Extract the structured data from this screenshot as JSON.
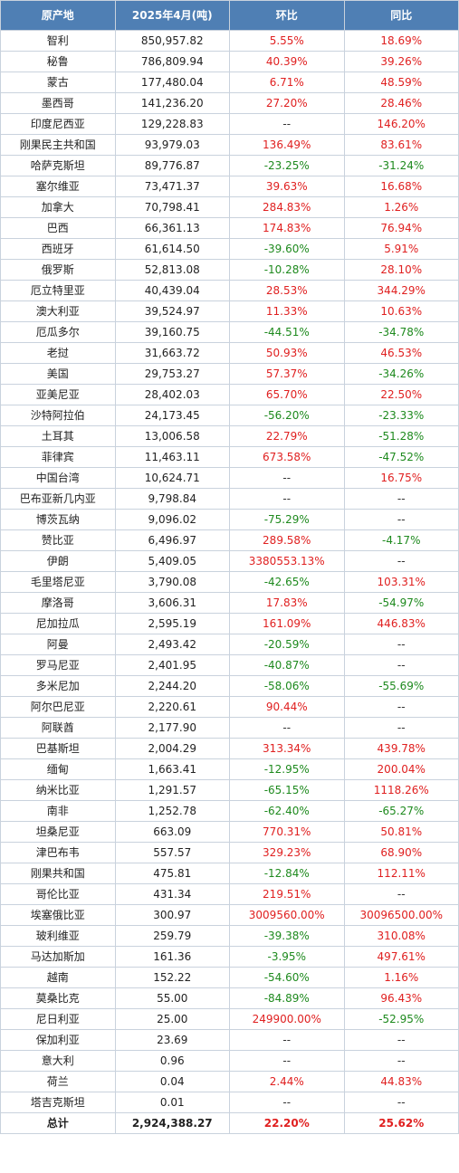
{
  "table": {
    "headers": [
      "原产地",
      "2025年4月(吨)",
      "环比",
      "同比"
    ],
    "rows": [
      [
        "智利",
        "850,957.82",
        "5.55%",
        "18.69%"
      ],
      [
        "秘鲁",
        "786,809.94",
        "40.39%",
        "39.26%"
      ],
      [
        "蒙古",
        "177,480.04",
        "6.71%",
        "48.59%"
      ],
      [
        "墨西哥",
        "141,236.20",
        "27.20%",
        "28.46%"
      ],
      [
        "印度尼西亚",
        "129,228.83",
        "--",
        "146.20%"
      ],
      [
        "刚果民主共和国",
        "93,979.03",
        "136.49%",
        "83.61%"
      ],
      [
        "哈萨克斯坦",
        "89,776.87",
        "-23.25%",
        "-31.24%"
      ],
      [
        "塞尔维亚",
        "73,471.37",
        "39.63%",
        "16.68%"
      ],
      [
        "加拿大",
        "70,798.41",
        "284.83%",
        "1.26%"
      ],
      [
        "巴西",
        "66,361.13",
        "174.83%",
        "76.94%"
      ],
      [
        "西班牙",
        "61,614.50",
        "-39.60%",
        "5.91%"
      ],
      [
        "俄罗斯",
        "52,813.08",
        "-10.28%",
        "28.10%"
      ],
      [
        "厄立特里亚",
        "40,439.04",
        "28.53%",
        "344.29%"
      ],
      [
        "澳大利亚",
        "39,524.97",
        "11.33%",
        "10.63%"
      ],
      [
        "厄瓜多尔",
        "39,160.75",
        "-44.51%",
        "-34.78%"
      ],
      [
        "老挝",
        "31,663.72",
        "50.93%",
        "46.53%"
      ],
      [
        "美国",
        "29,753.27",
        "57.37%",
        "-34.26%"
      ],
      [
        "亚美尼亚",
        "28,402.03",
        "65.70%",
        "22.50%"
      ],
      [
        "沙特阿拉伯",
        "24,173.45",
        "-56.20%",
        "-23.33%"
      ],
      [
        "土耳其",
        "13,006.58",
        "22.79%",
        "-51.28%"
      ],
      [
        "菲律宾",
        "11,463.11",
        "673.58%",
        "-47.52%"
      ],
      [
        "中国台湾",
        "10,624.71",
        "--",
        "16.75%"
      ],
      [
        "巴布亚新几内亚",
        "9,798.84",
        "--",
        "--"
      ],
      [
        "博茨瓦纳",
        "9,096.02",
        "-75.29%",
        "--"
      ],
      [
        "赞比亚",
        "6,496.97",
        "289.58%",
        "-4.17%"
      ],
      [
        "伊朗",
        "5,409.05",
        "3380553.13%",
        "--"
      ],
      [
        "毛里塔尼亚",
        "3,790.08",
        "-42.65%",
        "103.31%"
      ],
      [
        "摩洛哥",
        "3,606.31",
        "17.83%",
        "-54.97%"
      ],
      [
        "尼加拉瓜",
        "2,595.19",
        "161.09%",
        "446.83%"
      ],
      [
        "阿曼",
        "2,493.42",
        "-20.59%",
        "--"
      ],
      [
        "罗马尼亚",
        "2,401.95",
        "-40.87%",
        "--"
      ],
      [
        "多米尼加",
        "2,244.20",
        "-58.06%",
        "-55.69%"
      ],
      [
        "阿尔巴尼亚",
        "2,220.61",
        "90.44%",
        "--"
      ],
      [
        "阿联酋",
        "2,177.90",
        "--",
        "--"
      ],
      [
        "巴基斯坦",
        "2,004.29",
        "313.34%",
        "439.78%"
      ],
      [
        "缅甸",
        "1,663.41",
        "-12.95%",
        "200.04%"
      ],
      [
        "纳米比亚",
        "1,291.57",
        "-65.15%",
        "1118.26%"
      ],
      [
        "南非",
        "1,252.78",
        "-62.40%",
        "-65.27%"
      ],
      [
        "坦桑尼亚",
        "663.09",
        "770.31%",
        "50.81%"
      ],
      [
        "津巴布韦",
        "557.57",
        "329.23%",
        "68.90%"
      ],
      [
        "刚果共和国",
        "475.81",
        "-12.84%",
        "112.11%"
      ],
      [
        "哥伦比亚",
        "431.34",
        "219.51%",
        "--"
      ],
      [
        "埃塞俄比亚",
        "300.97",
        "3009560.00%",
        "30096500.00%"
      ],
      [
        "玻利维亚",
        "259.79",
        "-39.38%",
        "310.08%"
      ],
      [
        "马达加斯加",
        "161.36",
        "-3.95%",
        "497.61%"
      ],
      [
        "越南",
        "152.22",
        "-54.60%",
        "1.16%"
      ],
      [
        "莫桑比克",
        "55.00",
        "-84.89%",
        "96.43%"
      ],
      [
        "尼日利亚",
        "25.00",
        "249900.00%",
        "-52.95%"
      ],
      [
        "保加利亚",
        "23.69",
        "--",
        "--"
      ],
      [
        "意大利",
        "0.96",
        "--",
        "--"
      ],
      [
        "荷兰",
        "0.04",
        "2.44%",
        "44.83%"
      ],
      [
        "塔吉克斯坦",
        "0.01",
        "--",
        "--"
      ]
    ],
    "total": [
      "总计",
      "2,924,388.27",
      "22.20%",
      "25.62%"
    ]
  },
  "colors": {
    "header_bg": "#4f7fb4",
    "positive": "#e02020",
    "negative": "#1e8a1e",
    "border": "#c9d2dd"
  }
}
